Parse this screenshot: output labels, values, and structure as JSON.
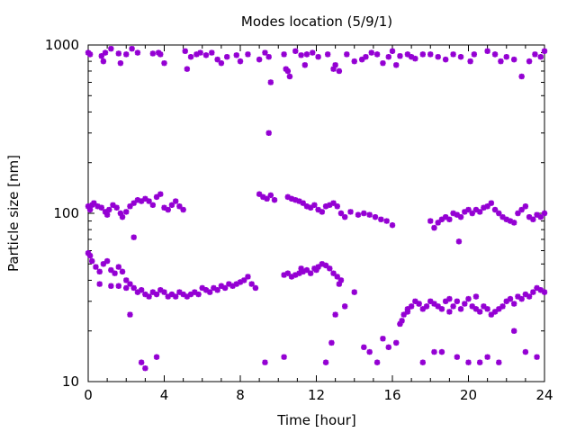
{
  "chart_data": {
    "type": "scatter",
    "title": "Modes location (5/9/1)",
    "xlabel": "Time [hour]",
    "ylabel": "Particle size [nm]",
    "xlim": [
      0,
      24
    ],
    "ylim": [
      10,
      1000
    ],
    "yscale": "log",
    "grid": false,
    "legend": "none",
    "marker_color": "#9400d3",
    "xticks": [
      {
        "value": 0,
        "label": "0"
      },
      {
        "value": 4,
        "label": "4"
      },
      {
        "value": 8,
        "label": "8"
      },
      {
        "value": 12,
        "label": "12"
      },
      {
        "value": 16,
        "label": "16"
      },
      {
        "value": 20,
        "label": "20"
      },
      {
        "value": 24,
        "label": "24"
      }
    ],
    "yticks": [
      {
        "value": 10,
        "label": "10"
      },
      {
        "value": 100,
        "label": "100"
      },
      {
        "value": 1000,
        "label": "1000"
      }
    ],
    "series": [
      {
        "x": [
          0.0,
          0.1,
          0.7,
          0.8,
          0.9,
          1.2,
          1.6,
          1.7,
          2.0,
          2.3,
          2.6,
          3.4,
          3.7,
          3.8,
          4.0,
          5.1,
          5.2,
          5.4,
          5.7,
          5.9,
          6.2,
          6.5,
          6.8,
          7.0,
          7.3,
          7.8,
          8.0,
          8.4,
          9.0,
          9.3,
          9.5,
          10.3,
          10.4,
          10.6,
          10.9,
          11.2,
          11.5,
          11.8,
          12.1,
          12.6,
          12.9,
          13.2,
          13.6,
          14.0,
          14.4,
          14.6,
          14.9,
          15.2,
          15.5,
          15.8,
          16.0,
          16.4,
          16.8,
          17.0,
          17.2,
          17.6,
          18.0,
          18.4,
          18.8,
          19.2,
          19.6,
          20.1,
          20.3,
          21.0,
          21.4,
          21.7,
          22.0,
          22.4,
          22.8,
          23.2,
          23.5,
          23.8,
          24.0,
          11.4,
          13.0,
          16.2,
          9.6,
          10.5
        ],
        "y": [
          900,
          880,
          860,
          800,
          900,
          950,
          890,
          780,
          880,
          950,
          900,
          890,
          900,
          880,
          780,
          920,
          720,
          850,
          880,
          900,
          870,
          900,
          820,
          780,
          850,
          870,
          800,
          880,
          820,
          900,
          850,
          880,
          720,
          650,
          920,
          870,
          880,
          900,
          850,
          880,
          720,
          700,
          880,
          800,
          820,
          850,
          900,
          880,
          780,
          850,
          920,
          860,
          880,
          850,
          830,
          880,
          880,
          850,
          820,
          880,
          850,
          800,
          880,
          920,
          880,
          800,
          850,
          820,
          650,
          800,
          880,
          850,
          920,
          760,
          760,
          760,
          600,
          700
        ]
      },
      {
        "x": [
          0.0,
          0.1,
          0.2,
          0.3,
          0.5,
          0.7,
          0.9,
          1.0,
          1.1,
          1.3,
          1.5,
          1.7,
          1.8,
          2.0,
          2.2,
          2.4,
          2.6,
          2.8,
          3.0,
          3.2,
          3.4,
          3.6,
          3.8,
          4.0,
          4.2,
          4.4,
          4.6,
          4.8,
          5.0,
          9.0,
          9.2,
          9.4,
          9.6,
          9.8,
          10.5,
          10.7,
          10.9,
          11.1,
          11.3,
          11.5,
          11.7,
          11.9,
          12.1,
          12.3,
          12.5,
          12.7,
          12.9,
          13.1,
          13.3,
          13.5,
          13.8,
          14.2,
          14.5,
          14.8,
          15.1,
          15.4,
          15.7,
          16.0,
          18.0,
          18.2,
          18.4,
          18.6,
          18.8,
          19.0,
          19.2,
          19.4,
          19.6,
          19.8,
          20.0,
          20.2,
          20.4,
          20.6,
          20.8,
          21.0,
          21.2,
          21.4,
          21.6,
          21.8,
          22.0,
          22.2,
          22.4,
          22.6,
          22.8,
          23.0,
          23.2,
          23.4,
          23.6,
          23.8,
          24.0,
          19.5,
          9.5
        ],
        "y": [
          110,
          105,
          112,
          115,
          110,
          108,
          102,
          98,
          105,
          112,
          108,
          100,
          95,
          102,
          110,
          115,
          120,
          118,
          122,
          118,
          112,
          125,
          130,
          108,
          105,
          112,
          118,
          110,
          105,
          130,
          125,
          122,
          128,
          120,
          125,
          122,
          120,
          118,
          115,
          110,
          108,
          112,
          105,
          102,
          110,
          112,
          115,
          110,
          100,
          95,
          102,
          98,
          100,
          98,
          95,
          92,
          90,
          85,
          90,
          82,
          88,
          92,
          95,
          92,
          100,
          98,
          95,
          102,
          105,
          100,
          105,
          102,
          108,
          110,
          115,
          105,
          100,
          95,
          92,
          90,
          88,
          100,
          105,
          110,
          95,
          92,
          98,
          95,
          100,
          68,
          300
        ]
      },
      {
        "x": [
          0.0,
          0.1,
          0.2,
          0.4,
          0.6,
          0.8,
          1.0,
          1.2,
          1.4,
          1.6,
          1.8,
          2.0,
          2.2,
          2.4,
          2.6,
          2.8,
          3.0,
          3.2,
          3.4,
          3.6,
          3.8,
          4.0,
          4.2,
          4.4,
          4.6,
          4.8,
          5.0,
          5.2,
          5.4,
          5.6,
          5.8,
          6.0,
          6.2,
          6.4,
          6.6,
          6.8,
          7.0,
          7.2,
          7.4,
          7.6,
          7.8,
          8.0,
          8.2,
          8.4,
          8.6,
          8.8,
          10.3,
          10.5,
          10.7,
          10.9,
          11.1,
          11.3,
          11.5,
          11.7,
          11.9,
          12.1,
          12.3,
          12.5,
          12.7,
          12.9,
          13.1,
          13.3,
          16.4,
          16.6,
          16.8,
          17.0,
          17.2,
          17.4,
          17.6,
          17.8,
          18.0,
          18.2,
          18.4,
          18.6,
          18.8,
          19.0,
          19.2,
          19.4,
          19.6,
          19.8,
          20.0,
          20.2,
          20.4,
          20.6,
          20.8,
          21.0,
          21.2,
          21.4,
          21.6,
          21.8,
          22.0,
          22.2,
          22.4,
          22.6,
          22.8,
          23.0,
          23.2,
          23.4,
          23.6,
          23.8,
          24.0
        ],
        "y": [
          58,
          56,
          52,
          48,
          45,
          50,
          52,
          46,
          44,
          48,
          45,
          40,
          38,
          36,
          34,
          35,
          33,
          32,
          34,
          33,
          35,
          34,
          32,
          33,
          32,
          34,
          33,
          32,
          33,
          34,
          33,
          36,
          35,
          34,
          36,
          35,
          37,
          36,
          38,
          37,
          38,
          39,
          40,
          42,
          38,
          36,
          43,
          44,
          42,
          43,
          44,
          45,
          46,
          44,
          47,
          48,
          50,
          49,
          47,
          44,
          42,
          40,
          22,
          25,
          27,
          28,
          30,
          29,
          27,
          28,
          30,
          29,
          28,
          27,
          30,
          26,
          28,
          30,
          27,
          29,
          31,
          28,
          27,
          26,
          28,
          27,
          25,
          26,
          27,
          28,
          30,
          31,
          29,
          32,
          31,
          33,
          32,
          34,
          36,
          35,
          34
        ]
      },
      {
        "x": [
          1.6,
          2.2,
          2.8,
          3.0,
          3.6,
          9.3,
          10.3,
          12.5,
          12.8,
          13.0,
          13.5,
          14.5,
          14.8,
          15.2,
          15.5,
          15.8,
          16.2,
          16.5,
          17.6,
          18.2,
          18.6,
          19.4,
          20.0,
          20.6,
          21.0,
          21.6,
          22.4,
          23.0,
          23.6,
          0.6,
          1.2,
          2.0,
          2.4,
          11.2,
          12.0,
          13.2,
          14.0,
          16.8,
          17.4,
          19.0,
          20.4
        ],
        "y": [
          37,
          25,
          13,
          12,
          14,
          13,
          14,
          13,
          17,
          25,
          28,
          16,
          15,
          13,
          18,
          16,
          17,
          23,
          13,
          15,
          15,
          14,
          13,
          13,
          14,
          13,
          20,
          15,
          14,
          38,
          37,
          36,
          72,
          47,
          46,
          38,
          34,
          26,
          29,
          31,
          32
        ]
      }
    ]
  }
}
